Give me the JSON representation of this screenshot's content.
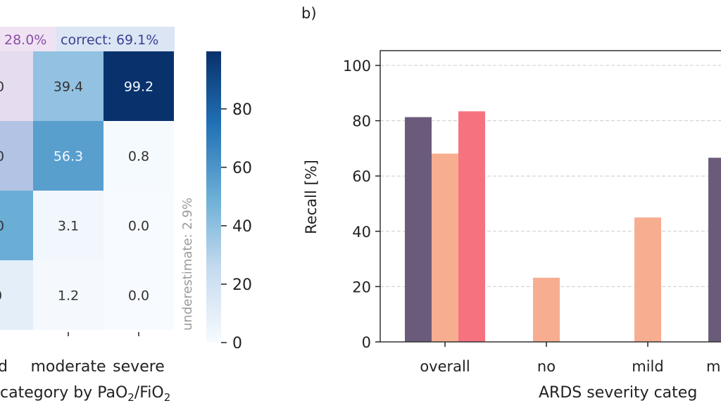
{
  "chart_data": [
    {
      "type": "heatmap",
      "annotations": {
        "overestimate_partial": "28.0%",
        "correct": "correct: 69.1%",
        "underestimate": "underestimate: 2.9%"
      },
      "x_tick_labels": [
        "d",
        "moderate",
        "severe"
      ],
      "xlabel_parts": [
        "category by PaO",
        "2",
        "/FiO",
        "2"
      ],
      "cells": [
        [
          ".0",
          "39.4",
          "99.2"
        ],
        [
          ".0",
          "56.3",
          "0.8"
        ],
        [
          ".0",
          "3.1",
          "0.0"
        ],
        [
          "0",
          "1.2",
          "0.0"
        ]
      ],
      "cell_values": [
        [
          null,
          39.4,
          99.2
        ],
        [
          null,
          56.3,
          0.8
        ],
        [
          null,
          3.1,
          0.0
        ],
        [
          null,
          1.2,
          0.0
        ]
      ],
      "partial_column_colors": [
        "#e6dcef",
        "#b3c3e3",
        "#6aaed6",
        "#e3eef9"
      ],
      "colorbar": {
        "ticks": [
          "0",
          "20",
          "40",
          "60",
          "80"
        ],
        "range": [
          0,
          99.2
        ],
        "colormap": "Blues"
      }
    },
    {
      "type": "bar",
      "panel_label": "b)",
      "ylabel": "Recall [%]",
      "xlabel": "ARDS severity categ",
      "categories": [
        "overall",
        "no",
        "mild",
        "m"
      ],
      "ylim": [
        0,
        105
      ],
      "y_ticks": [
        "0",
        "20",
        "40",
        "60",
        "80",
        "100"
      ],
      "grid": "y-dashed",
      "series": [
        {
          "color": "#6b5b7b",
          "values": [
            81.3,
            null,
            null,
            66.6
          ]
        },
        {
          "color": "#f7ae90",
          "values": [
            68.1,
            23.2,
            45.0,
            null
          ]
        },
        {
          "color": "#f6727f",
          "values": [
            83.4,
            null,
            null,
            null
          ]
        }
      ]
    }
  ]
}
